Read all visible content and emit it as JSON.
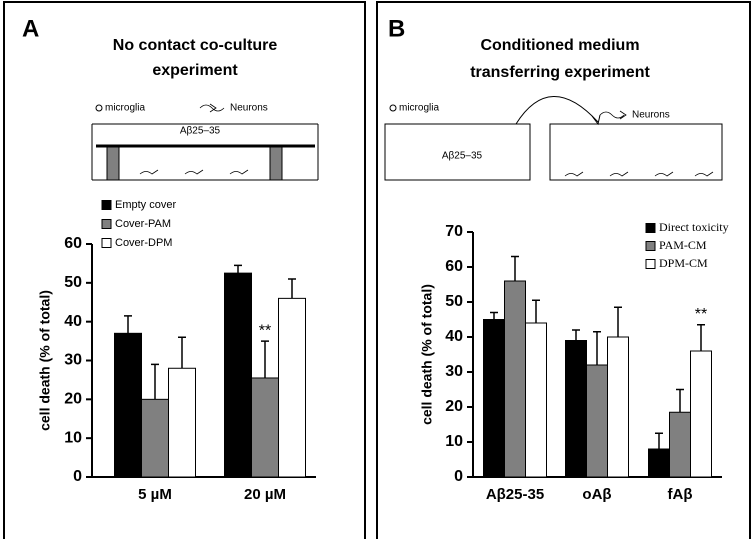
{
  "chart_data": [
    {
      "type": "bar",
      "panel": "A",
      "title": [
        "No contact co-culture",
        "experiment"
      ],
      "diagram": {
        "labels": [
          "microglia",
          "Neurons",
          "Aβ25–35"
        ]
      },
      "ylabel": "cell death (% of total)",
      "categories": [
        "5 µM",
        "20 µM"
      ],
      "series": [
        {
          "name": "Empty cover",
          "color": "#000000",
          "values": [
            37,
            52.5
          ],
          "errors": [
            4.5,
            2
          ]
        },
        {
          "name": "Cover-PAM",
          "color": "#808080",
          "values": [
            20,
            25.5
          ],
          "errors": [
            9,
            9.5
          ]
        },
        {
          "name": "Cover-DPM",
          "color": "#ffffff",
          "values": [
            28,
            46
          ],
          "errors": [
            8,
            5
          ]
        }
      ],
      "annotations": [
        {
          "text": "**",
          "category": "20 µM",
          "series": "Cover-PAM"
        }
      ],
      "ylim": [
        0,
        60
      ],
      "yticks": [
        0,
        10,
        20,
        30,
        40,
        50,
        60
      ],
      "legend": "upper left"
    },
    {
      "type": "bar",
      "panel": "B",
      "title": [
        "Conditioned medium",
        "transferring experiment"
      ],
      "diagram": {
        "labels": [
          "microglia",
          "Neurons",
          "Aβ25–35"
        ]
      },
      "ylabel": "cell death (% of total)",
      "categories": [
        "Aβ25-35",
        "oAβ",
        "fAβ"
      ],
      "series": [
        {
          "name": "Direct toxicity",
          "color": "#000000",
          "values": [
            45,
            39,
            8
          ],
          "errors": [
            2,
            3,
            4.5
          ]
        },
        {
          "name": "PAM-CM",
          "color": "#808080",
          "values": [
            56,
            32,
            18.5
          ],
          "errors": [
            7,
            9.5,
            6.5
          ]
        },
        {
          "name": "DPM-CM",
          "color": "#ffffff",
          "values": [
            44,
            40,
            36
          ],
          "errors": [
            6.5,
            8.5,
            7.5
          ]
        }
      ],
      "annotations": [
        {
          "text": "**",
          "category": "fAβ",
          "series": "DPM-CM"
        }
      ],
      "ylim": [
        0,
        70
      ],
      "yticks": [
        0,
        10,
        20,
        30,
        40,
        50,
        60,
        70
      ],
      "legend": "upper right"
    }
  ]
}
